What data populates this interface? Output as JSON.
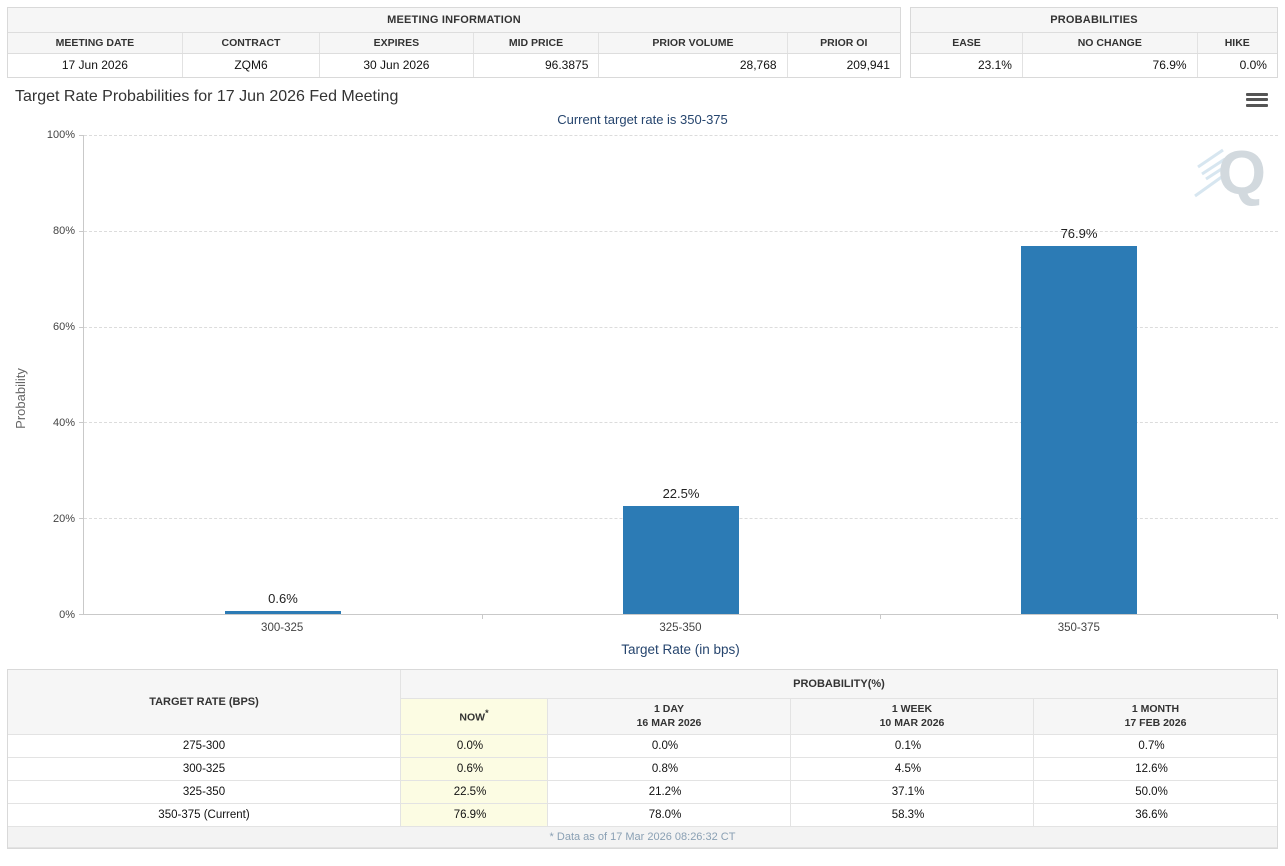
{
  "colors": {
    "bar": "#2c7bb5",
    "now_bg": "#fcfce3",
    "accent": "#26456e"
  },
  "meeting_info": {
    "title": "MEETING INFORMATION",
    "columns": [
      "MEETING DATE",
      "CONTRACT",
      "EXPIRES",
      "MID PRICE",
      "PRIOR VOLUME",
      "PRIOR OI"
    ],
    "values": [
      "17 Jun 2026",
      "ZQM6",
      "30 Jun 2026",
      "96.3875",
      "28,768",
      "209,941"
    ]
  },
  "probabilities": {
    "title": "PROBABILITIES",
    "columns": [
      "EASE",
      "NO CHANGE",
      "HIKE"
    ],
    "values": [
      "23.1%",
      "76.9%",
      "0.0%"
    ]
  },
  "chart_data": {
    "type": "bar",
    "title": "Target Rate Probabilities for 17 Jun 2026 Fed Meeting",
    "subtitle": "Current target rate is 350-375",
    "categories": [
      "300-325",
      "325-350",
      "350-375"
    ],
    "values": [
      0.6,
      22.5,
      76.9
    ],
    "labels": [
      "0.6%",
      "22.5%",
      "76.9%"
    ],
    "xlabel": "Target Rate (in bps)",
    "ylabel": "Probability",
    "ylim": [
      0,
      100
    ],
    "yticks": [
      "0%",
      "20%",
      "40%",
      "60%",
      "80%",
      "100%"
    ],
    "grid": true,
    "legend": false
  },
  "history_table": {
    "rate_header": "TARGET RATE (BPS)",
    "group_header": "PROBABILITY(%)",
    "now": {
      "label": "NOW",
      "asterisk": "*"
    },
    "columns": [
      {
        "label": "1 DAY",
        "date": "16 MAR 2026"
      },
      {
        "label": "1 WEEK",
        "date": "10 MAR 2026"
      },
      {
        "label": "1 MONTH",
        "date": "17 FEB 2026"
      }
    ],
    "rows": [
      {
        "rate": "275-300",
        "values": [
          "0.0%",
          "0.0%",
          "0.1%",
          "0.7%"
        ]
      },
      {
        "rate": "300-325",
        "values": [
          "0.6%",
          "0.8%",
          "4.5%",
          "12.6%"
        ]
      },
      {
        "rate": "325-350",
        "values": [
          "22.5%",
          "21.2%",
          "37.1%",
          "50.0%"
        ]
      },
      {
        "rate": "350-375 (Current)",
        "values": [
          "76.9%",
          "78.0%",
          "58.3%",
          "36.6%"
        ]
      }
    ],
    "footnote": "* Data as of 17 Mar 2026 08:26:32 CT"
  }
}
